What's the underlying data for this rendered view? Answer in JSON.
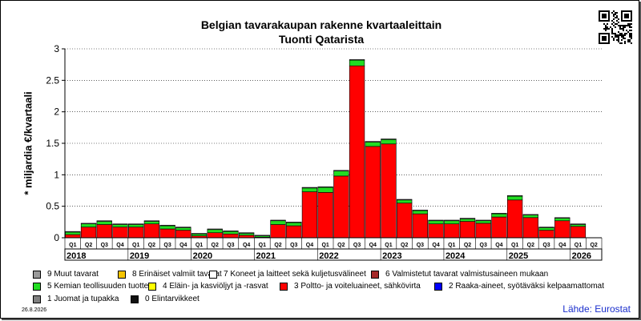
{
  "title": "Belgian tavarakaupan rakenne kvartaaleittain",
  "subtitle": "Tuonti Qatarista",
  "ylabel": "* miljardia €/kvartaali",
  "date": "26.8.2026",
  "source": "Lähde: Eurostat",
  "chart_data": {
    "type": "bar",
    "stacked": true,
    "ylim": [
      0,
      3
    ],
    "yticks": [
      "0",
      "0.5",
      "1",
      "1.5",
      "2",
      "2.5",
      "3"
    ],
    "ytick_values": [
      0,
      0.5,
      1,
      1.5,
      2,
      2.5,
      3
    ],
    "grid": true,
    "categories": [
      "2018 Q1",
      "2018 Q2",
      "2018 Q3",
      "2018 Q4",
      "2019 Q1",
      "2019 Q2",
      "2019 Q3",
      "2019 Q4",
      "2020 Q1",
      "2020 Q2",
      "2020 Q3",
      "2020 Q4",
      "2021 Q1",
      "2021 Q2",
      "2021 Q3",
      "2021 Q4",
      "2022 Q1",
      "2022 Q2",
      "2022 Q3",
      "2022 Q4",
      "2023 Q1",
      "2023 Q2",
      "2023 Q3",
      "2023 Q4",
      "2024 Q1",
      "2024 Q2",
      "2024 Q3",
      "2024 Q4",
      "2025 Q1",
      "2025 Q2",
      "2025 Q3",
      "2025 Q4",
      "2026 Q1",
      "2026 Q2"
    ],
    "quarter_labels": [
      "Q1",
      "Q2",
      "Q3",
      "Q4",
      "Q1",
      "Q2",
      "Q3",
      "Q4",
      "Q1",
      "Q2",
      "Q3",
      "Q4",
      "Q1",
      "Q2",
      "Q3",
      "Q4",
      "Q1",
      "Q2",
      "Q3",
      "Q4",
      "Q1",
      "Q2",
      "Q3",
      "Q4",
      "Q1",
      "Q2",
      "Q3",
      "Q4",
      "Q1",
      "Q2",
      "Q3",
      "Q4",
      "Q1",
      "Q2"
    ],
    "years": [
      "2018",
      "2019",
      "2020",
      "2021",
      "2022",
      "2023",
      "2024",
      "2025",
      "2026"
    ],
    "series": [
      {
        "name": "3 Poltto- ja voiteluaineet, sähkövirta",
        "color": "#ff0000",
        "values": [
          0.05,
          0.17,
          0.21,
          0.17,
          0.17,
          0.22,
          0.14,
          0.12,
          0.03,
          0.08,
          0.06,
          0.04,
          0.01,
          0.21,
          0.19,
          0.73,
          0.72,
          0.98,
          2.73,
          1.45,
          1.49,
          0.55,
          0.38,
          0.22,
          0.22,
          0.26,
          0.23,
          0.33,
          0.6,
          0.32,
          0.12,
          0.27,
          0.18,
          0.0
        ]
      },
      {
        "name": "5 Kemian teollisuuden tuotteet",
        "color": "#22dd22",
        "values": [
          0.04,
          0.05,
          0.05,
          0.04,
          0.04,
          0.04,
          0.05,
          0.04,
          0.03,
          0.05,
          0.04,
          0.03,
          0.02,
          0.06,
          0.05,
          0.06,
          0.08,
          0.08,
          0.09,
          0.07,
          0.07,
          0.05,
          0.05,
          0.05,
          0.05,
          0.04,
          0.04,
          0.05,
          0.06,
          0.04,
          0.04,
          0.04,
          0.03,
          0.0
        ]
      },
      {
        "name": "9 Muut tavarat",
        "color": "#9a9a9a",
        "values": [
          0.01,
          0.01,
          0.01,
          0.01,
          0.01,
          0.01,
          0.01,
          0.01,
          0.01,
          0.01,
          0.01,
          0.01,
          0.01,
          0.01,
          0.01,
          0.01,
          0.01,
          0.01,
          0.01,
          0.01,
          0.01,
          0.01,
          0.01,
          0.01,
          0.01,
          0.01,
          0.01,
          0.01,
          0.01,
          0.01,
          0.01,
          0.01,
          0.01,
          0.0
        ]
      }
    ],
    "legend": [
      {
        "label": "9 Muut tavarat",
        "color": "#9a9a9a"
      },
      {
        "label": "8 Erinäiset valmiit tavarat",
        "color": "#f5c400"
      },
      {
        "label": "7 Koneet ja laitteet sekä kuljetusvälineet",
        "color": "#ffffff"
      },
      {
        "label": "6 Valmistetut tavarat valmistusaineen mukaan",
        "color": "#a52a2a"
      },
      {
        "label": "5 Kemian teollisuuden tuotteet",
        "color": "#22dd22"
      },
      {
        "label": "4 Eläin- ja kasviöljyt ja -rasvat",
        "color": "#ffff00"
      },
      {
        "label": "3 Poltto- ja voiteluaineet, sähkövirta",
        "color": "#ff0000"
      },
      {
        "label": "2 Raaka-aineet, syötäväksi kelpaamattomat",
        "color": "#0000ff"
      },
      {
        "label": "1 Juomat ja tupakka",
        "color": "#808080"
      },
      {
        "label": "0 Elintarvikkeet",
        "color": "#111111"
      }
    ]
  }
}
